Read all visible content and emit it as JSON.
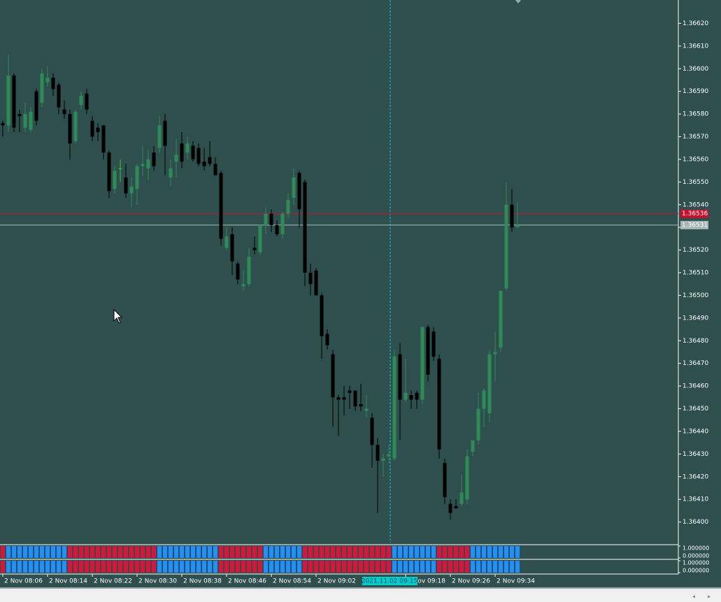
{
  "chart_data": {
    "type": "candlestick",
    "up_color": "#2e8b57",
    "down_color": "#000000",
    "doji_color": "#32cd32",
    "ylim": [
      1.3639,
      1.3663
    ],
    "yticks": [
      {
        "value": 1.3662,
        "label": "1.36620"
      },
      {
        "value": 1.3661,
        "label": "1.36610"
      },
      {
        "value": 1.366,
        "label": "1.36600"
      },
      {
        "value": 1.3659,
        "label": "1.36590"
      },
      {
        "value": 1.3658,
        "label": "1.36580"
      },
      {
        "value": 1.3657,
        "label": "1.36570"
      },
      {
        "value": 1.3656,
        "label": "1.36560"
      },
      {
        "value": 1.3655,
        "label": "1.36550"
      },
      {
        "value": 1.3654,
        "label": "1.36540"
      },
      {
        "value": 1.3653,
        "label": "1.36530"
      },
      {
        "value": 1.3652,
        "label": "1.36520"
      },
      {
        "value": 1.3651,
        "label": "1.36510"
      },
      {
        "value": 1.365,
        "label": "1.36500"
      },
      {
        "value": 1.3649,
        "label": "1.36490"
      },
      {
        "value": 1.3648,
        "label": "1.36480"
      },
      {
        "value": 1.3647,
        "label": "1.36470"
      },
      {
        "value": 1.3646,
        "label": "1.36460"
      },
      {
        "value": 1.3645,
        "label": "1.36450"
      },
      {
        "value": 1.3644,
        "label": "1.36440"
      },
      {
        "value": 1.3643,
        "label": "1.36430"
      },
      {
        "value": 1.3642,
        "label": "1.36420"
      },
      {
        "value": 1.3641,
        "label": "1.36410"
      },
      {
        "value": 1.364,
        "label": "1.36400"
      }
    ],
    "categories": [
      "2 Nov 08:06",
      null,
      null,
      null,
      null,
      null,
      null,
      null,
      "2 Nov 08:14",
      null,
      null,
      null,
      null,
      null,
      null,
      null,
      "2 Nov 08:22",
      null,
      null,
      null,
      null,
      null,
      null,
      null,
      "2 Nov 08:30",
      null,
      null,
      null,
      null,
      null,
      null,
      null,
      "2 Nov 08:38",
      null,
      null,
      null,
      null,
      null,
      null,
      null,
      "2 Nov 08:46",
      null,
      null,
      null,
      null,
      null,
      null,
      null,
      "2 Nov 08:54",
      null,
      null,
      null,
      null,
      null,
      null,
      null,
      "2 Nov 09:02",
      null,
      null,
      null,
      null,
      null,
      null,
      null,
      null,
      null,
      null,
      null,
      null,
      null,
      null,
      null,
      "2 Nov 09:18",
      null,
      null,
      null,
      null,
      null,
      null,
      null,
      "2 Nov 09:26",
      null,
      null,
      null,
      null,
      null,
      null,
      null,
      "2 Nov 09:34",
      null,
      null,
      null,
      null
    ],
    "open": [
      1.36576,
      1.36575,
      1.36597,
      1.3658,
      1.36574,
      1.36573,
      1.3659,
      1.36585,
      1.36594,
      1.36596,
      1.36593,
      1.36582,
      1.3658,
      1.36568,
      1.36584,
      1.36589,
      1.36577,
      1.36574,
      1.36575,
      1.36563,
      1.36547,
      1.36556,
      1.36552,
      1.36545,
      1.36547,
      1.36557,
      1.36556,
      1.36563,
      1.36565,
      1.36577,
      1.36552,
      1.36559,
      1.36567,
      1.36563,
      1.36566,
      1.36565,
      1.36559,
      1.36561,
      1.36558,
      1.36554,
      1.36521,
      1.36527,
      1.36514,
      1.36504,
      1.36505,
      1.36521,
      1.36519,
      1.36531,
      1.36536,
      1.36531,
      1.36527,
      1.36536,
      1.36543,
      1.36554,
      1.3655,
      1.3651,
      1.36511,
      1.365,
      1.36483,
      1.36474,
      1.36455,
      1.36455,
      1.36458,
      1.36458,
      1.36452,
      1.36449,
      1.36446,
      1.36434,
      1.36427,
      1.36429,
      1.36428,
      1.36474,
      1.36454,
      1.36456,
      1.36457,
      1.36454,
      1.36486,
      1.36484,
      1.36472,
      1.36426,
      1.36408,
      1.36407,
      1.36408,
      1.3641,
      1.36431,
      1.36436,
      1.3645,
      1.36448,
      1.36474,
      1.36477,
      1.36503,
      1.3654,
      1.3653
    ],
    "high": [
      1.36577,
      1.36606,
      1.36598,
      1.36582,
      1.36585,
      1.36583,
      1.36591,
      1.366,
      1.36601,
      1.36598,
      1.36594,
      1.36586,
      1.36582,
      1.36582,
      1.3659,
      1.36591,
      1.36579,
      1.36576,
      1.36575,
      1.36564,
      1.36557,
      1.3656,
      1.36558,
      1.36552,
      1.36558,
      1.36566,
      1.36564,
      1.36566,
      1.36579,
      1.3658,
      1.3656,
      1.36569,
      1.36572,
      1.3657,
      1.36568,
      1.36567,
      1.36565,
      1.36568,
      1.36561,
      1.36555,
      1.3653,
      1.3653,
      1.36515,
      1.36511,
      1.36521,
      1.36526,
      1.36531,
      1.36539,
      1.36538,
      1.36533,
      1.36537,
      1.36545,
      1.36556,
      1.36555,
      1.36551,
      1.36514,
      1.36512,
      1.36501,
      1.36485,
      1.36476,
      1.36456,
      1.3646,
      1.3646,
      1.36458,
      1.36461,
      1.36456,
      1.36448,
      1.36437,
      1.3643,
      1.36434,
      1.36476,
      1.36479,
      1.36472,
      1.36458,
      1.36458,
      1.36486,
      1.36487,
      1.36486,
      1.36474,
      1.36428,
      1.3641,
      1.3641,
      1.36421,
      1.36432,
      1.36436,
      1.36457,
      1.36459,
      1.36476,
      1.36484,
      1.36502,
      1.3655,
      1.36547,
      1.36541
    ],
    "low": [
      1.3657,
      1.36572,
      1.36572,
      1.36572,
      1.36572,
      1.36572,
      1.36575,
      1.36583,
      1.36592,
      1.36588,
      1.3658,
      1.36578,
      1.3656,
      1.36567,
      1.36582,
      1.3658,
      1.36568,
      1.36568,
      1.3656,
      1.36543,
      1.36545,
      1.3655,
      1.36543,
      1.36539,
      1.3654,
      1.36553,
      1.36551,
      1.36555,
      1.36563,
      1.36553,
      1.36548,
      1.36552,
      1.36556,
      1.3656,
      1.36559,
      1.36557,
      1.36555,
      1.36557,
      1.36553,
      1.36522,
      1.3652,
      1.36509,
      1.36505,
      1.36502,
      1.36504,
      1.36518,
      1.36518,
      1.36527,
      1.36528,
      1.36526,
      1.36525,
      1.36534,
      1.3654,
      1.3653,
      1.36504,
      1.365,
      1.365,
      1.36472,
      1.36476,
      1.36442,
      1.36438,
      1.36447,
      1.3645,
      1.36449,
      1.36449,
      1.36446,
      1.36424,
      1.36404,
      1.3642,
      1.36426,
      1.36427,
      1.36436,
      1.36453,
      1.3645,
      1.3645,
      1.36452,
      1.36462,
      1.36471,
      1.36428,
      1.36408,
      1.36401,
      1.36406,
      1.36407,
      1.36408,
      1.36429,
      1.36434,
      1.36442,
      1.36444,
      1.36462,
      1.36475,
      1.36502,
      1.36528,
      1.3653
    ],
    "close": [
      1.36575,
      1.36597,
      1.36574,
      1.36579,
      1.3658,
      1.36581,
      1.36577,
      1.36598,
      1.36596,
      1.36591,
      1.36583,
      1.3658,
      1.36567,
      1.36581,
      1.36588,
      1.36582,
      1.3657,
      1.36572,
      1.36563,
      1.36546,
      1.36555,
      1.36556,
      1.36545,
      1.36548,
      1.36557,
      1.36558,
      1.3656,
      1.36557,
      1.36575,
      1.36566,
      1.36556,
      1.36562,
      1.36559,
      1.36567,
      1.3656,
      1.36558,
      1.36557,
      1.36558,
      1.36553,
      1.36525,
      1.36526,
      1.36515,
      1.36507,
      1.36505,
      1.36517,
      1.3652,
      1.36531,
      1.36536,
      1.36531,
      1.36527,
      1.36536,
      1.36542,
      1.36552,
      1.36538,
      1.3651,
      1.36505,
      1.365,
      1.36482,
      1.36478,
      1.36455,
      1.36454,
      1.36454,
      1.36457,
      1.36451,
      1.36451,
      1.3645,
      1.36434,
      1.36427,
      1.36428,
      1.3643,
      1.36473,
      1.36454,
      1.36457,
      1.36454,
      1.36454,
      1.36486,
      1.36465,
      1.36473,
      1.36432,
      1.36411,
      1.36404,
      1.36406,
      1.36413,
      1.36429,
      1.36436,
      1.3645,
      1.36458,
      1.36474,
      1.36475,
      1.36502,
      1.3654,
      1.3653,
      1.36531
    ],
    "price_lines": [
      {
        "value": 1.36536,
        "label": "1.36536",
        "color": "#c8102e"
      },
      {
        "value": 1.36531,
        "label": "1.36531",
        "color": "#a9b6b6"
      }
    ],
    "crosshair_label": "2021.11.02 09:15",
    "indicators": [
      {
        "ylim": [
          0,
          1
        ],
        "yticks": [
          {
            "value": 1,
            "label": "1.000000"
          },
          {
            "value": 0,
            "label": "0.000000"
          }
        ],
        "up_color": "#1e90ff",
        "down_color": "#dc143c",
        "values": [
          0,
          1,
          1,
          1,
          1,
          1,
          1,
          1,
          1,
          1,
          1,
          1,
          0,
          0,
          0,
          0,
          0,
          0,
          0,
          0,
          0,
          0,
          0,
          0,
          0,
          0,
          0,
          0,
          1,
          1,
          1,
          1,
          1,
          1,
          1,
          1,
          1,
          1,
          1,
          0,
          0,
          0,
          0,
          0,
          0,
          0,
          0,
          1,
          1,
          1,
          1,
          1,
          1,
          1,
          0,
          0,
          0,
          0,
          0,
          0,
          0,
          0,
          0,
          0,
          0,
          0,
          0,
          0,
          0,
          0,
          1,
          1,
          1,
          1,
          1,
          1,
          1,
          1,
          0,
          0,
          0,
          0,
          0,
          0,
          1,
          1,
          1,
          1,
          1,
          1,
          1,
          1,
          1
        ]
      },
      {
        "ylim": [
          0,
          1
        ],
        "yticks": [
          {
            "value": 1,
            "label": "1.000000"
          },
          {
            "value": 0,
            "label": "0.000000"
          }
        ],
        "up_color": "#1e90ff",
        "down_color": "#dc143c",
        "values": [
          0,
          1,
          1,
          1,
          1,
          1,
          1,
          1,
          1,
          1,
          1,
          1,
          0,
          0,
          0,
          0,
          0,
          0,
          0,
          0,
          0,
          0,
          0,
          0,
          0,
          0,
          0,
          0,
          1,
          1,
          1,
          1,
          1,
          1,
          1,
          1,
          1,
          1,
          1,
          0,
          0,
          0,
          0,
          0,
          0,
          0,
          0,
          1,
          1,
          1,
          1,
          1,
          1,
          1,
          0,
          0,
          0,
          0,
          0,
          0,
          0,
          0,
          0,
          0,
          0,
          0,
          0,
          0,
          0,
          0,
          1,
          1,
          1,
          1,
          1,
          1,
          1,
          1,
          0,
          0,
          0,
          0,
          0,
          0,
          1,
          1,
          1,
          1,
          1,
          1,
          1,
          1,
          1
        ]
      }
    ]
  }
}
